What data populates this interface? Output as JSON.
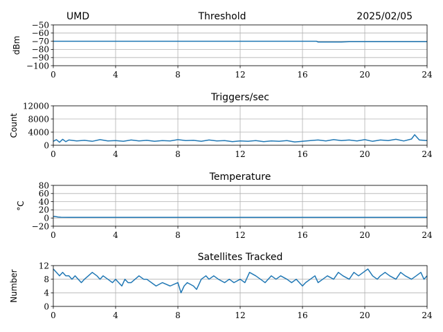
{
  "header": {
    "site": "UMD",
    "date": "2025/02/05"
  },
  "chart_data": [
    {
      "type": "line",
      "title": "Threshold",
      "xlabel": "",
      "ylabel": "dBm",
      "xlim": [
        0,
        24
      ],
      "ylim": [
        -100,
        -50
      ],
      "xticks": [
        "0",
        "4",
        "8",
        "12",
        "16",
        "20",
        "24"
      ],
      "yticks": [
        "−50",
        "−60",
        "−70",
        "−80",
        "−90",
        "−100"
      ],
      "grid": true,
      "series": [
        {
          "x": [
            0,
            2,
            4,
            6,
            8,
            10,
            12,
            14,
            16,
            16.9,
            17,
            17.5,
            18,
            18.5,
            19,
            20,
            21,
            22,
            23,
            24
          ],
          "y": [
            -70,
            -70,
            -70,
            -70,
            -70,
            -70,
            -70,
            -70,
            -70,
            -70,
            -71,
            -71,
            -71,
            -71,
            -70.5,
            -70.5,
            -70.5,
            -70.5,
            -70.5,
            -70.5
          ]
        }
      ]
    },
    {
      "type": "line",
      "title": "Triggers/sec",
      "xlabel": "",
      "ylabel": "Count",
      "xlim": [
        0,
        24
      ],
      "ylim": [
        0,
        12000
      ],
      "xticks": [
        "0",
        "4",
        "8",
        "12",
        "16",
        "20",
        "24"
      ],
      "yticks": [
        "12000",
        "8000",
        "4000",
        "0"
      ],
      "grid": true,
      "series": [
        {
          "x": [
            0,
            0.2,
            0.4,
            0.6,
            0.8,
            1,
            1.5,
            2,
            2.5,
            3,
            3.5,
            4,
            4.5,
            5,
            5.5,
            6,
            6.5,
            7,
            7.5,
            8,
            8.5,
            9,
            9.5,
            10,
            10.5,
            11,
            11.5,
            12,
            12.5,
            13,
            13.5,
            14,
            14.5,
            15,
            15.5,
            16,
            16.5,
            17,
            17.5,
            18,
            18.5,
            19,
            19.5,
            20,
            20.5,
            21,
            21.5,
            22,
            22.5,
            23,
            23.2,
            23.5,
            24
          ],
          "y": [
            1200,
            1700,
            900,
            1800,
            1100,
            1600,
            1300,
            1500,
            1200,
            1700,
            1300,
            1400,
            1200,
            1600,
            1300,
            1500,
            1200,
            1400,
            1300,
            1700,
            1400,
            1500,
            1200,
            1600,
            1300,
            1400,
            1100,
            1300,
            1200,
            1400,
            1100,
            1300,
            1200,
            1400,
            1000,
            1200,
            1400,
            1600,
            1300,
            1700,
            1400,
            1600,
            1300,
            1700,
            1200,
            1600,
            1400,
            1800,
            1300,
            1900,
            3200,
            1600,
            1400
          ]
        }
      ]
    },
    {
      "type": "line",
      "title": "Temperature",
      "xlabel": "",
      "ylabel": "°C",
      "xlim": [
        0,
        24
      ],
      "ylim": [
        -20,
        80
      ],
      "xticks": [
        "0",
        "4",
        "8",
        "12",
        "16",
        "20",
        "24"
      ],
      "yticks": [
        "80",
        "60",
        "40",
        "20",
        "0",
        "−20"
      ],
      "grid": true,
      "series": [
        {
          "x": [
            0,
            0.05,
            0.15,
            0.3,
            0.5,
            1,
            4,
            8,
            12,
            16,
            20,
            24
          ],
          "y": [
            3,
            4,
            3.5,
            2.5,
            1.8,
            1.5,
            1.5,
            1.5,
            1.5,
            1.5,
            1.5,
            1.5
          ]
        }
      ]
    },
    {
      "type": "line",
      "title": "Satellites Tracked",
      "xlabel": "",
      "ylabel": "Number",
      "xlim": [
        0,
        24
      ],
      "ylim": [
        0,
        12
      ],
      "xticks": [
        "0",
        "4",
        "8",
        "12",
        "16",
        "20",
        "24"
      ],
      "yticks": [
        "12",
        "8",
        "4",
        "0"
      ],
      "grid": true,
      "series": [
        {
          "x": [
            0,
            0.2,
            0.4,
            0.6,
            0.8,
            1,
            1.2,
            1.4,
            1.6,
            1.8,
            2,
            2.5,
            2.8,
            3,
            3.2,
            3.5,
            3.8,
            4,
            4.2,
            4.4,
            4.6,
            4.8,
            5,
            5.5,
            5.8,
            6,
            6.3,
            6.6,
            7,
            7.5,
            8,
            8.2,
            8.4,
            8.6,
            9,
            9.2,
            9.5,
            9.8,
            10,
            10.3,
            10.6,
            11,
            11.3,
            11.6,
            12,
            12.3,
            12.6,
            13,
            13.3,
            13.6,
            14,
            14.3,
            14.6,
            15,
            15.3,
            15.6,
            16,
            16.2,
            16.5,
            16.8,
            17,
            17.3,
            17.6,
            18,
            18.3,
            18.6,
            19,
            19.3,
            19.6,
            19.9,
            20.2,
            20.5,
            20.8,
            21,
            21.3,
            21.6,
            22,
            22.3,
            22.6,
            23,
            23.3,
            23.6,
            23.8,
            24
          ],
          "y": [
            11,
            10,
            9,
            10,
            9,
            9,
            8,
            9,
            8,
            7,
            8,
            10,
            9,
            8,
            9,
            8,
            7,
            8,
            7,
            6,
            8,
            7,
            7,
            9,
            8,
            8,
            7,
            6,
            7,
            6,
            7,
            4,
            6,
            7,
            6,
            5,
            8,
            9,
            8,
            9,
            8,
            7,
            8,
            7,
            8,
            7,
            10,
            9,
            8,
            7,
            9,
            8,
            9,
            8,
            7,
            8,
            6,
            7,
            8,
            9,
            7,
            8,
            9,
            8,
            10,
            9,
            8,
            10,
            9,
            10,
            11,
            9,
            8,
            9,
            10,
            9,
            8,
            10,
            9,
            8,
            9,
            10,
            8,
            9
          ]
        }
      ]
    }
  ]
}
